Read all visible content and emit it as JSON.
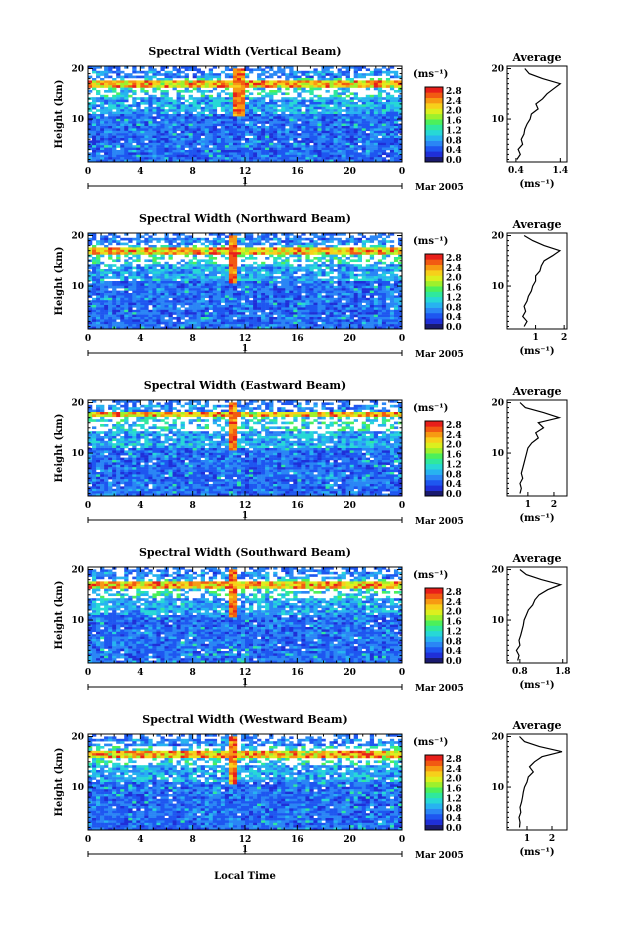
{
  "figure": {
    "date_label": "Mar 2005",
    "day_label": "1",
    "xlabel": "Local Time"
  },
  "colorbar": {
    "unit": "(ms⁻¹)",
    "ticks": [
      "2.8",
      "2.4",
      "2.0",
      "1.6",
      "1.2",
      "0.8",
      "0.4",
      "0.0"
    ],
    "colors": [
      "#1a1a6e",
      "#1f2fd8",
      "#1e56f0",
      "#2a86f5",
      "#27b3f0",
      "#27d8d6",
      "#2fe89e",
      "#4cf05a",
      "#9ef02c",
      "#dcef1e",
      "#f7d01a",
      "#f79a12",
      "#f25a12",
      "#e81f1a"
    ]
  },
  "chart_data": [
    {
      "type": "heatmap",
      "title": "Spectral Width (Vertical Beam)",
      "ylabel": "Height (km)",
      "xticks": [
        "0",
        "4",
        "8",
        "12",
        "16",
        "20",
        "0"
      ],
      "yticks": [
        "20",
        "10"
      ],
      "xlim": [
        0,
        24
      ],
      "ylim": [
        1.5,
        20.5
      ],
      "peak": {
        "height": 17,
        "time": 11.5
      },
      "average": {
        "title": "Average",
        "xlabel": "(ms⁻¹)",
        "xticks": [
          "0.4",
          "1.4"
        ],
        "xlim": [
          0.2,
          1.55
        ],
        "heights": [
          2,
          3,
          4,
          5,
          6,
          7,
          8,
          9,
          10,
          11,
          12,
          13,
          14,
          15,
          16,
          17,
          18,
          19,
          20
        ],
        "values": [
          0.42,
          0.5,
          0.45,
          0.55,
          0.52,
          0.58,
          0.6,
          0.65,
          0.72,
          0.75,
          0.9,
          0.85,
          1.0,
          1.1,
          1.25,
          1.4,
          1.0,
          0.7,
          0.6
        ]
      }
    },
    {
      "type": "heatmap",
      "title": "Spectral Width (Northward Beam)",
      "ylabel": "Height (km)",
      "xticks": [
        "0",
        "4",
        "8",
        "12",
        "16",
        "20",
        "0"
      ],
      "yticks": [
        "20",
        "10"
      ],
      "xlim": [
        0,
        24
      ],
      "ylim": [
        1.5,
        20.5
      ],
      "peak": {
        "height": 17,
        "time": 11
      },
      "average": {
        "title": "Average",
        "xlabel": "(ms⁻¹)",
        "xticks": [
          "1",
          "2"
        ],
        "xlim": [
          0,
          2.1
        ],
        "heights": [
          2,
          3,
          4,
          5,
          6,
          7,
          8,
          9,
          10,
          11,
          12,
          13,
          14,
          15,
          16,
          17,
          18,
          19,
          20
        ],
        "values": [
          0.6,
          0.7,
          0.55,
          0.65,
          0.6,
          0.7,
          0.75,
          0.85,
          0.9,
          1.0,
          1.0,
          1.15,
          1.2,
          1.3,
          1.6,
          1.85,
          1.3,
          0.9,
          0.6
        ]
      }
    },
    {
      "type": "heatmap",
      "title": "Spectral Width (Eastward Beam)",
      "ylabel": "Height (km)",
      "xticks": [
        "0",
        "4",
        "8",
        "12",
        "16",
        "20",
        "0"
      ],
      "yticks": [
        "20",
        "10"
      ],
      "xlim": [
        0,
        24
      ],
      "ylim": [
        1.5,
        20.5
      ],
      "peak": {
        "height": 17.5,
        "time": 11
      },
      "average": {
        "title": "Average",
        "xlabel": "(ms⁻¹)",
        "xticks": [
          "1",
          "2"
        ],
        "xlim": [
          0.2,
          2.5
        ],
        "heights": [
          2,
          3,
          4,
          5,
          6,
          7,
          8,
          9,
          10,
          11,
          12,
          13,
          14,
          15,
          16,
          17,
          18,
          19,
          20
        ],
        "values": [
          0.7,
          0.75,
          0.7,
          0.8,
          0.75,
          0.8,
          0.85,
          0.9,
          0.95,
          1.0,
          1.15,
          1.4,
          1.3,
          1.6,
          1.4,
          2.2,
          1.6,
          0.9,
          0.7
        ]
      }
    },
    {
      "type": "heatmap",
      "title": "Spectral Width (Southward Beam)",
      "ylabel": "Height (km)",
      "xticks": [
        "0",
        "4",
        "8",
        "12",
        "16",
        "20",
        "0"
      ],
      "yticks": [
        "20",
        "10"
      ],
      "xlim": [
        0,
        24
      ],
      "ylim": [
        1.5,
        20.5
      ],
      "peak": {
        "height": 17,
        "time": 11
      },
      "average": {
        "title": "Average",
        "xlabel": "(ms⁻¹)",
        "xticks": [
          "0.8",
          "1.8"
        ],
        "xlim": [
          0.5,
          1.9
        ],
        "heights": [
          2,
          3,
          4,
          5,
          6,
          7,
          8,
          9,
          10,
          11,
          12,
          13,
          14,
          15,
          16,
          17,
          18,
          19,
          20
        ],
        "values": [
          0.75,
          0.78,
          0.72,
          0.8,
          0.78,
          0.82,
          0.85,
          0.88,
          0.9,
          0.95,
          1.0,
          1.1,
          1.15,
          1.25,
          1.45,
          1.75,
          1.3,
          0.95,
          0.8
        ]
      }
    },
    {
      "type": "heatmap",
      "title": "Spectral Width (Westward Beam)",
      "ylabel": "Height (km)",
      "xticks": [
        "0",
        "4",
        "8",
        "12",
        "16",
        "20",
        "0"
      ],
      "yticks": [
        "20",
        "10"
      ],
      "xlim": [
        0,
        24
      ],
      "ylim": [
        1.5,
        20.5
      ],
      "peak": {
        "height": 16.5,
        "time": 11
      },
      "average": {
        "title": "Average",
        "xlabel": "(ms⁻¹)",
        "xticks": [
          "1",
          "2"
        ],
        "xlim": [
          0.2,
          2.6
        ],
        "heights": [
          2,
          3,
          4,
          5,
          6,
          7,
          8,
          9,
          10,
          11,
          12,
          13,
          14,
          15,
          16,
          17,
          18,
          19,
          20
        ],
        "values": [
          0.7,
          0.72,
          0.68,
          0.75,
          0.72,
          0.78,
          0.82,
          0.85,
          0.9,
          1.0,
          1.05,
          1.25,
          1.1,
          1.3,
          1.6,
          2.4,
          1.5,
          0.9,
          0.7
        ]
      }
    }
  ]
}
